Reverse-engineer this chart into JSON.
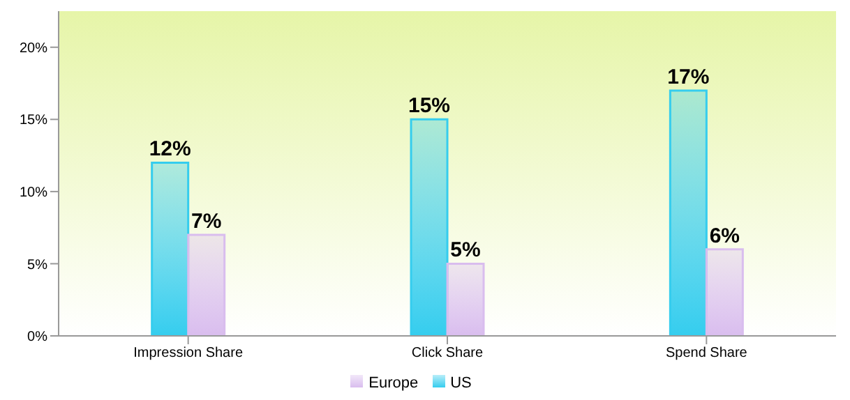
{
  "chart_data": {
    "type": "bar",
    "categories": [
      "Impression Share",
      "Click Share",
      "Spend Share"
    ],
    "series": [
      {
        "name": "US",
        "color": "#35cdee",
        "values": [
          12,
          15,
          17
        ],
        "value_labels": [
          "12%",
          "15%",
          "17%"
        ]
      },
      {
        "name": "Europe",
        "color": "#d9bdee",
        "values": [
          7,
          5,
          6
        ],
        "value_labels": [
          "7%",
          "5%",
          "6%"
        ]
      }
    ],
    "ylim": [
      0,
      22.5
    ],
    "yticks": [
      {
        "value": 0,
        "label": "0%"
      },
      {
        "value": 5,
        "label": "5%"
      },
      {
        "value": 10,
        "label": "10%"
      },
      {
        "value": 15,
        "label": "15%"
      },
      {
        "value": 20,
        "label": "20%"
      }
    ],
    "grid": false,
    "legend": "bottom"
  }
}
